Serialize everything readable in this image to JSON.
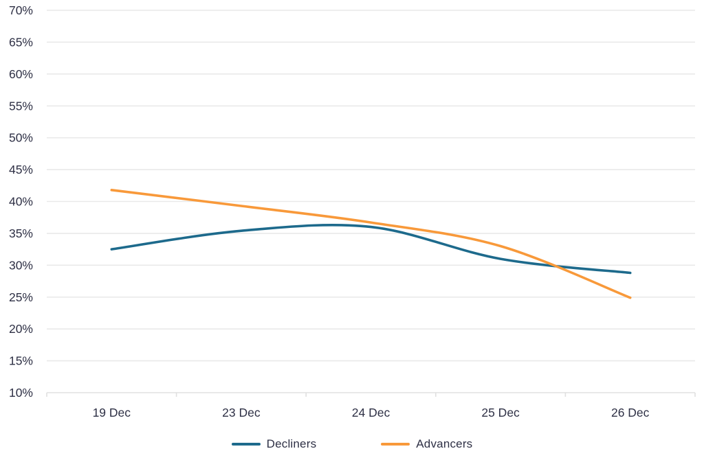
{
  "chart_data": {
    "type": "line",
    "title": "",
    "xlabel": "",
    "ylabel": "",
    "categories": [
      "19 Dec",
      "23 Dec",
      "24 Dec",
      "25 Dec",
      "26 Dec"
    ],
    "series": [
      {
        "name": "Decliners",
        "color": "#1d6a8c",
        "values": [
          32.5,
          35.4,
          36.0,
          31.0,
          28.8
        ]
      },
      {
        "name": "Advancers",
        "color": "#f8993a",
        "values": [
          41.8,
          39.3,
          36.7,
          33.0,
          24.9
        ]
      }
    ],
    "ylim": [
      10,
      70
    ],
    "ytick_step": 5,
    "ytick_suffix": "%",
    "grid": "horizontal",
    "legend_position": "bottom",
    "line_style": "smooth",
    "colors": {
      "grid": "#e9e9e9",
      "axis": "#e0e0e0",
      "text": "#2e3045",
      "background": "#ffffff"
    }
  }
}
